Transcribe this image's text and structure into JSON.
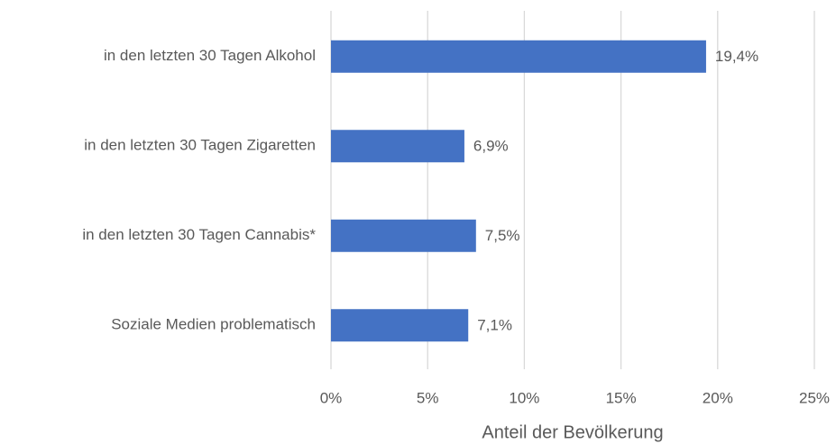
{
  "chart_data": {
    "type": "bar",
    "orientation": "horizontal",
    "categories": [
      "in den letzten 30 Tagen Alkohol",
      "in den letzten 30 Tagen Zigaretten",
      "in den letzten 30 Tagen Cannabis*",
      "Soziale Medien problematisch"
    ],
    "values": [
      19.4,
      6.9,
      7.5,
      7.1
    ],
    "value_labels": [
      "19,4%",
      "6,9%",
      "7,5%",
      "7,1%"
    ],
    "color": "#4472c4",
    "xlim": [
      0,
      25
    ],
    "xticks": [
      {
        "value": 0,
        "label": "0%"
      },
      {
        "value": 5,
        "label": "5%"
      },
      {
        "value": 10,
        "label": "10%"
      },
      {
        "value": 15,
        "label": "15%"
      },
      {
        "value": 20,
        "label": "20%"
      },
      {
        "value": 25,
        "label": "25%"
      }
    ],
    "x_label": "Anteil der Bevölkerung",
    "grid": true
  }
}
